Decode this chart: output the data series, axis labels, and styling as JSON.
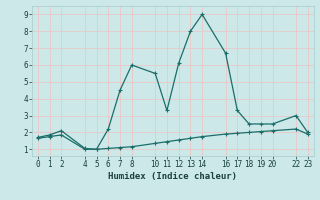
{
  "xlabel": "Humidex (Indice chaleur)",
  "bg_color": "#cce8e8",
  "grid_color": "#e8c8c8",
  "line_color": "#1a6e6a",
  "line1_x": [
    0,
    1,
    2,
    4,
    5,
    6,
    7,
    8,
    10,
    11,
    12,
    13,
    14,
    16,
    17,
    18,
    19,
    20,
    22,
    23
  ],
  "line1_y": [
    1.7,
    1.85,
    2.1,
    1.05,
    1.0,
    2.2,
    4.5,
    6.0,
    5.5,
    3.3,
    6.1,
    8.0,
    9.0,
    6.7,
    3.3,
    2.5,
    2.5,
    2.5,
    3.0,
    2.0
  ],
  "line2_x": [
    0,
    1,
    2,
    4,
    5,
    6,
    7,
    8,
    10,
    11,
    12,
    13,
    14,
    16,
    17,
    18,
    19,
    20,
    22,
    23
  ],
  "line2_y": [
    1.65,
    1.75,
    1.85,
    1.0,
    1.0,
    1.05,
    1.1,
    1.15,
    1.35,
    1.45,
    1.55,
    1.65,
    1.75,
    1.9,
    1.95,
    2.0,
    2.05,
    2.1,
    2.2,
    1.9
  ],
  "xlim": [
    -0.5,
    23.5
  ],
  "ylim": [
    0.6,
    9.5
  ],
  "xticks": [
    0,
    1,
    2,
    4,
    5,
    6,
    7,
    8,
    10,
    11,
    12,
    13,
    14,
    16,
    17,
    18,
    19,
    20,
    22,
    23
  ],
  "yticks": [
    1,
    2,
    3,
    4,
    5,
    6,
    7,
    8,
    9
  ],
  "xlabel_fontsize": 6.5,
  "tick_fontsize": 5.5
}
